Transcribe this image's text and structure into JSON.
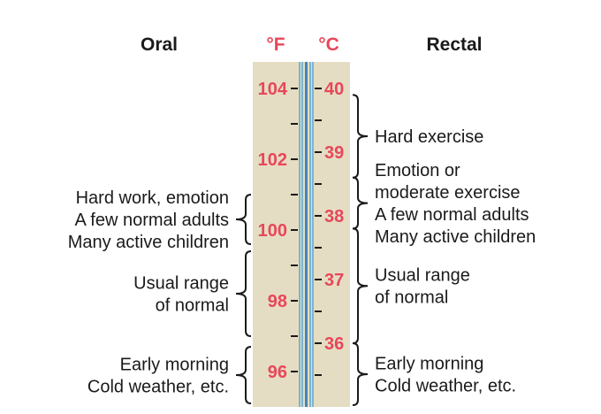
{
  "headers": {
    "oral": "Oral",
    "rectal": "Rectal",
    "fahrenheit": "°F",
    "celsius": "°C"
  },
  "colors": {
    "numbers": "#e8475a",
    "body": "#e4ddc3",
    "tube": "#5aa6d6",
    "ink": "#1a1a1a"
  },
  "fahrenheit_labels": [
    "104",
    "102",
    "100",
    "98",
    "96"
  ],
  "fahrenheit_scale": {
    "top": 104,
    "bottom": 96,
    "minor_step": 1
  },
  "celsius_labels": [
    "40",
    "39",
    "38",
    "37",
    "36"
  ],
  "celsius_scale": {
    "top": 40,
    "bottom": 35.5,
    "minor_step": 0.5
  },
  "oral_ranges": [
    {
      "lines": [
        "Hard work, emotion",
        "A few normal adults",
        "Many active children"
      ],
      "from_f": 101,
      "to_f": 99.6
    },
    {
      "lines": [
        "Usual range",
        "of normal"
      ],
      "from_f": 99.4,
      "to_f": 97
    },
    {
      "lines": [
        "Early morning",
        "Cold weather, etc."
      ],
      "from_f": 96.7,
      "to_f": 95.1
    }
  ],
  "rectal_ranges": [
    {
      "lines": [
        "Hard exercise"
      ],
      "from_c": 39.9,
      "to_c": 38.6
    },
    {
      "lines": [
        "Emotion or",
        "moderate exercise",
        "A few normal adults",
        "Many active children"
      ],
      "from_c": 38.6,
      "to_c": 37.8
    },
    {
      "lines": [
        "Usual range",
        "of normal"
      ],
      "from_c": 37.8,
      "to_c": 36.0
    },
    {
      "lines": [
        "Early morning",
        "Cold weather, etc."
      ],
      "from_c": 36.0,
      "to_c": 35.0
    }
  ]
}
